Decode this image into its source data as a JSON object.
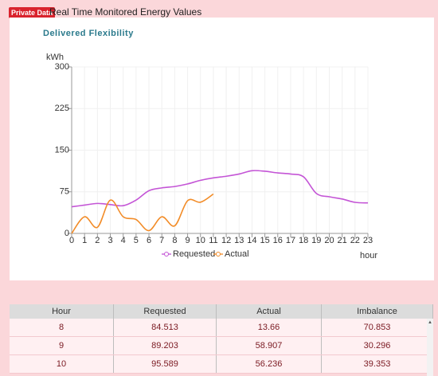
{
  "header": {
    "badge": "Private Data",
    "title": "Real Time Monitored Energy Values"
  },
  "chart_data": {
    "type": "line",
    "title": "Delivered Flexibility",
    "y_label": "kWh",
    "x_label": "hour",
    "x": [
      0,
      1,
      2,
      3,
      4,
      5,
      6,
      7,
      8,
      9,
      10,
      11,
      12,
      13,
      14,
      15,
      16,
      17,
      18,
      19,
      20,
      21,
      22,
      23
    ],
    "xlim": [
      0,
      23
    ],
    "xticks": [
      0,
      1,
      2,
      3,
      4,
      5,
      6,
      7,
      8,
      9,
      10,
      11,
      12,
      13,
      14,
      15,
      16,
      17,
      18,
      19,
      20,
      21,
      22,
      23
    ],
    "ylim": [
      0,
      300
    ],
    "yticks": [
      0,
      75,
      150,
      225,
      300
    ],
    "grid": true,
    "legend": "bottom",
    "series": [
      {
        "name": "Requested",
        "color": "#c455d6",
        "values": [
          48,
          51,
          54,
          52,
          50,
          60,
          77,
          82,
          84.513,
          89.203,
          95.589,
          100,
          103,
          107,
          113,
          112,
          109,
          107,
          102,
          72,
          66,
          62,
          56,
          55
        ]
      },
      {
        "name": "Actual",
        "color": "#f28c28",
        "values": [
          0,
          30,
          11,
          60,
          30,
          25,
          5,
          30,
          13.66,
          58.907,
          56.236,
          71,
          null,
          null,
          null,
          null,
          null,
          null,
          null,
          null,
          null,
          null,
          null,
          null
        ]
      }
    ]
  },
  "table": {
    "columns": [
      "Hour",
      "Requested",
      "Actual",
      "Imbalance"
    ],
    "rows": [
      [
        8,
        84.513,
        13.66,
        70.853
      ],
      [
        9,
        89.203,
        58.907,
        30.296
      ],
      [
        10,
        95.589,
        56.236,
        39.353
      ]
    ]
  }
}
